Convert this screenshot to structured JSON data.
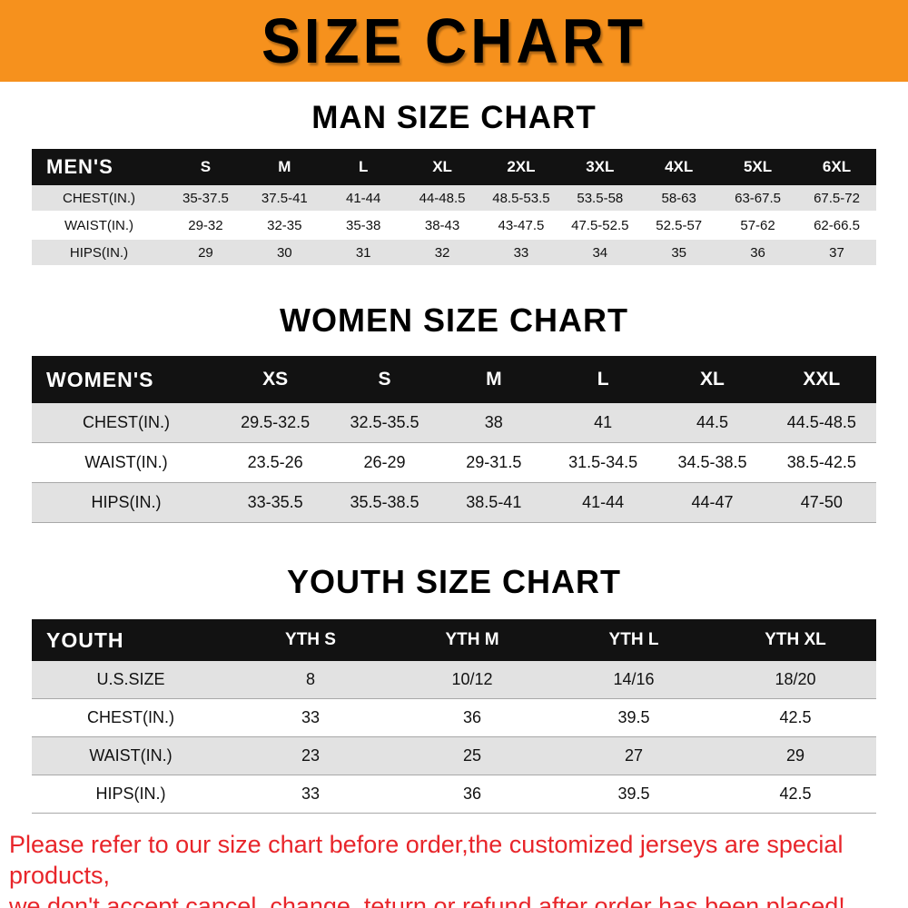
{
  "banner": {
    "title": "SIZE CHART"
  },
  "colors": {
    "banner_bg": "#f6911d",
    "header_bg": "#121212",
    "row_alt_bg": "#e2e2e2",
    "footer_text": "#e8252a"
  },
  "chart_data": [
    {
      "type": "table",
      "title": "MAN SIZE CHART",
      "columns": [
        "MEN'S",
        "S",
        "M",
        "L",
        "XL",
        "2XL",
        "3XL",
        "4XL",
        "5XL",
        "6XL"
      ],
      "rows": [
        [
          "CHEST(IN.)",
          "35-37.5",
          "37.5-41",
          "41-44",
          "44-48.5",
          "48.5-53.5",
          "53.5-58",
          "58-63",
          "63-67.5",
          "67.5-72"
        ],
        [
          "WAIST(IN.)",
          "29-32",
          "32-35",
          "35-38",
          "38-43",
          "43-47.5",
          "47.5-52.5",
          "52.5-57",
          "57-62",
          "62-66.5"
        ],
        [
          "HIPS(IN.)",
          "29",
          "30",
          "31",
          "32",
          "33",
          "34",
          "35",
          "36",
          "37"
        ]
      ]
    },
    {
      "type": "table",
      "title": "WOMEN SIZE CHART",
      "columns": [
        "WOMEN'S",
        "XS",
        "S",
        "M",
        "L",
        "XL",
        "XXL"
      ],
      "rows": [
        [
          "CHEST(IN.)",
          "29.5-32.5",
          "32.5-35.5",
          "38",
          "41",
          "44.5",
          "44.5-48.5"
        ],
        [
          "WAIST(IN.)",
          "23.5-26",
          "26-29",
          "29-31.5",
          "31.5-34.5",
          "34.5-38.5",
          "38.5-42.5"
        ],
        [
          "HIPS(IN.)",
          "33-35.5",
          "35.5-38.5",
          "38.5-41",
          "41-44",
          "44-47",
          "47-50"
        ]
      ]
    },
    {
      "type": "table",
      "title": "YOUTH SIZE CHART",
      "columns": [
        "YOUTH",
        "YTH S",
        "YTH M",
        "YTH L",
        "YTH XL"
      ],
      "rows": [
        [
          "U.S.SIZE",
          "8",
          "10/12",
          "14/16",
          "18/20"
        ],
        [
          "CHEST(IN.)",
          "33",
          "36",
          "39.5",
          "42.5"
        ],
        [
          "WAIST(IN.)",
          "23",
          "25",
          "27",
          "29"
        ],
        [
          "HIPS(IN.)",
          "33",
          "36",
          "39.5",
          "42.5"
        ]
      ]
    }
  ],
  "footer": {
    "line1": "Please refer to our size chart before order,the customized jerseys are special products,",
    "line2": "we don't accept cancel, change, teturn or refund after order has been placed!"
  }
}
